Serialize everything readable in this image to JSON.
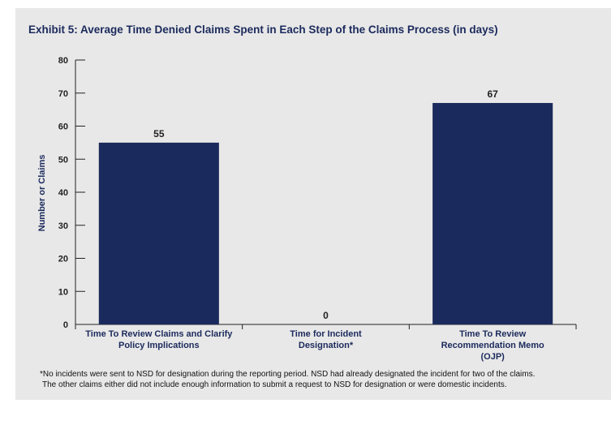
{
  "chart_data": {
    "type": "bar",
    "title": "Exhibit 5: Average Time Denied Claims Spent in Each Step of the Claims Process (in days)",
    "ylabel": "Number or Claims",
    "xlabel": "",
    "ylim": [
      0,
      80
    ],
    "yticks": [
      0,
      10,
      20,
      30,
      40,
      50,
      60,
      70,
      80
    ],
    "categories": [
      [
        "Time To Review Claims and Clarify",
        "Policy Implications"
      ],
      [
        "Time for Incident",
        "Designation*"
      ],
      [
        "Time To Review",
        "Recommendation Memo",
        "(OJP)"
      ]
    ],
    "values": [
      55,
      0,
      67
    ],
    "data_labels": [
      "55",
      "0",
      "67"
    ],
    "bar_color": "#1b2a5c",
    "grid": false
  },
  "footnote": [
    "*No incidents were sent to NSD for designation during the reporting period. NSD had already designated the incident for two of the claims.",
    "The other claims either did not include enough information to submit a request to NSD for designation or were domestic incidents."
  ]
}
